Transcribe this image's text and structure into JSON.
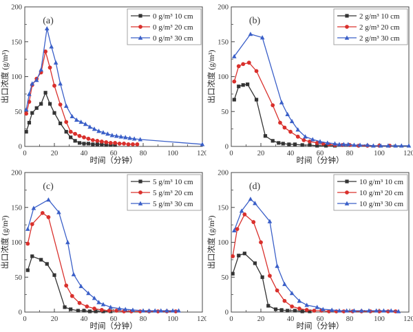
{
  "figure": {
    "background": "#ffffff",
    "axis_color": "#444444",
    "text_color": "#333333",
    "legend_border_color": "#999999"
  },
  "chart_data": [
    {
      "type": "line",
      "panel_label": "(a)",
      "xlabel": "时间（分钟）",
      "ylabel": "出口浓度 (g/m³)",
      "xlim": [
        0,
        120
      ],
      "ylim": [
        0,
        200
      ],
      "xticks": [
        0,
        20,
        40,
        60,
        80,
        100,
        120
      ],
      "yticks": [
        0,
        50,
        100,
        150,
        200
      ],
      "x_minor_step": 10,
      "y_minor_step": 25,
      "grid": false,
      "legend_position": "top-right",
      "series": [
        {
          "name": "0 g/m³ 10 cm",
          "color": "#333333",
          "marker": "square",
          "x": [
            1,
            3,
            5,
            8,
            11,
            14,
            17,
            20,
            24,
            28,
            31,
            34,
            37,
            40,
            43,
            46,
            49,
            52,
            55,
            58,
            61
          ],
          "y": [
            21,
            34,
            48,
            55,
            61,
            77,
            61,
            48,
            33,
            21,
            13,
            8,
            5,
            4,
            4,
            3,
            3,
            3,
            2,
            2,
            2
          ]
        },
        {
          "name": "0 g/m³ 20 cm",
          "color": "#d9302c",
          "marker": "circle",
          "x": [
            1,
            3,
            5,
            8,
            11,
            14,
            17,
            20,
            24,
            28,
            31,
            34,
            37,
            40,
            43,
            46,
            49,
            52,
            55,
            58,
            61,
            64,
            67,
            70,
            73,
            76
          ],
          "y": [
            47,
            64,
            88,
            97,
            106,
            136,
            113,
            87,
            60,
            35,
            21,
            18,
            15,
            13,
            11,
            9,
            8,
            7,
            6,
            5,
            5,
            4,
            4,
            3,
            3,
            3
          ]
        },
        {
          "name": "0 g/m³ 30 cm",
          "color": "#3a5fc8",
          "marker": "triangle",
          "x": [
            1,
            3,
            5,
            8,
            11,
            15,
            18,
            21,
            24,
            28,
            32,
            35,
            38,
            41,
            44,
            47,
            50,
            53,
            56,
            59,
            62,
            65,
            68,
            71,
            74,
            78,
            120
          ],
          "y": [
            53,
            75,
            90,
            95,
            110,
            169,
            143,
            120,
            90,
            58,
            43,
            38,
            35,
            32,
            28,
            25,
            22,
            20,
            18,
            16,
            15,
            14,
            13,
            12,
            11,
            10,
            3
          ]
        }
      ]
    },
    {
      "type": "line",
      "panel_label": "(b)",
      "xlabel": "时间（分钟）",
      "ylabel": "出口浓度 (g/m³)",
      "xlim": [
        0,
        120
      ],
      "ylim": [
        0,
        200
      ],
      "xticks": [
        0,
        20,
        40,
        60,
        80,
        100,
        120
      ],
      "yticks": [
        0,
        50,
        100,
        150,
        200
      ],
      "x_minor_step": 10,
      "y_minor_step": 25,
      "grid": false,
      "legend_position": "top-right",
      "series": [
        {
          "name": "2 g/m³ 10 cm",
          "color": "#333333",
          "marker": "square",
          "x": [
            2,
            5,
            8,
            11,
            17,
            23,
            28,
            32,
            35,
            39,
            43,
            48,
            53,
            58,
            64,
            70
          ],
          "y": [
            67,
            86,
            88,
            89,
            67,
            15,
            8,
            5,
            4,
            3,
            3,
            2,
            2,
            1,
            1,
            1
          ]
        },
        {
          "name": "2 g/m³ 20 cm",
          "color": "#d9302c",
          "marker": "circle",
          "x": [
            2,
            5,
            8,
            12,
            17,
            28,
            33,
            36,
            40,
            45,
            49,
            53,
            58,
            62,
            66,
            70,
            75,
            80,
            86,
            92,
            100,
            107
          ],
          "y": [
            93,
            115,
            118,
            120,
            108,
            59,
            34,
            27,
            21,
            14,
            9,
            7,
            5,
            4,
            3,
            2,
            2,
            2,
            1,
            1,
            1,
            1
          ]
        },
        {
          "name": "2 g/m³ 30 cm",
          "color": "#3a5fc8",
          "marker": "triangle",
          "x": [
            2,
            13,
            21,
            34,
            38,
            41,
            45,
            50,
            55,
            60,
            65,
            70,
            73,
            76,
            79,
            83,
            87,
            92,
            96,
            101,
            106,
            111,
            115,
            120
          ],
          "y": [
            129,
            161,
            156,
            63,
            46,
            36,
            24,
            14,
            10,
            7,
            5,
            4,
            3,
            3,
            3,
            2,
            2,
            2,
            1,
            1,
            1,
            1,
            1,
            1
          ]
        }
      ]
    },
    {
      "type": "line",
      "panel_label": "(c)",
      "xlabel": "时间（分钟）",
      "ylabel": "出口浓度 (g/m³)",
      "xlim": [
        0,
        120
      ],
      "ylim": [
        0,
        200
      ],
      "xticks": [
        0,
        20,
        40,
        60,
        80,
        100,
        120
      ],
      "yticks": [
        0,
        50,
        100,
        150,
        200
      ],
      "x_minor_step": 10,
      "y_minor_step": 25,
      "grid": false,
      "legend_position": "top-right",
      "series": [
        {
          "name": "5 g/m³ 10 cm",
          "color": "#333333",
          "marker": "square",
          "x": [
            2,
            5,
            11,
            15,
            20,
            27,
            31,
            36,
            40,
            44,
            48,
            53,
            58
          ],
          "y": [
            60,
            80,
            75,
            69,
            53,
            7,
            4,
            2,
            2,
            1,
            1,
            1,
            1
          ]
        },
        {
          "name": "5 g/m³ 20 cm",
          "color": "#d9302c",
          "marker": "circle",
          "x": [
            2,
            5,
            12,
            16,
            28,
            32,
            37,
            42,
            47,
            52,
            57,
            62,
            67,
            72,
            78,
            84,
            90,
            96,
            102
          ],
          "y": [
            98,
            126,
            142,
            136,
            38,
            23,
            13,
            8,
            5,
            3,
            2,
            2,
            1,
            1,
            1,
            1,
            1,
            1,
            1
          ]
        },
        {
          "name": "5 g/m³ 30 cm",
          "color": "#3a5fc8",
          "marker": "triangle",
          "x": [
            2,
            6,
            16,
            23,
            29,
            33,
            38,
            43,
            47,
            50,
            53,
            58,
            64,
            68,
            73,
            80,
            84,
            88,
            92,
            96,
            100,
            104
          ],
          "y": [
            119,
            149,
            161,
            143,
            100,
            54,
            37,
            27,
            20,
            14,
            11,
            7,
            5,
            4,
            3,
            2,
            2,
            2,
            2,
            2,
            2,
            2
          ]
        }
      ]
    },
    {
      "type": "line",
      "panel_label": "(d)",
      "xlabel": "时间（分钟）",
      "ylabel": "出口浓度 (g/m³)",
      "xlim": [
        0,
        120
      ],
      "ylim": [
        0,
        200
      ],
      "xticks": [
        0,
        20,
        40,
        60,
        80,
        100,
        120
      ],
      "yticks": [
        0,
        50,
        100,
        150,
        200
      ],
      "x_minor_step": 10,
      "y_minor_step": 25,
      "grid": false,
      "legend_position": "top-right",
      "series": [
        {
          "name": "10 g/m³ 10 cm",
          "color": "#333333",
          "marker": "square",
          "x": [
            1,
            5,
            9,
            16,
            21,
            25,
            30,
            34,
            38,
            43,
            48,
            53
          ],
          "y": [
            55,
            81,
            84,
            70,
            50,
            9,
            4,
            3,
            2,
            2,
            1,
            1
          ]
        },
        {
          "name": "10 g/m³ 20 cm",
          "color": "#d9302c",
          "marker": "circle",
          "x": [
            1,
            4,
            9,
            15,
            20,
            26,
            31,
            36,
            41,
            46,
            51,
            56,
            61,
            66,
            71,
            76,
            82,
            88,
            94,
            100,
            106,
            111
          ],
          "y": [
            80,
            119,
            140,
            129,
            100,
            52,
            31,
            16,
            8,
            5,
            3,
            2,
            2,
            1,
            1,
            1,
            1,
            1,
            1,
            1,
            1,
            1
          ]
        },
        {
          "name": "10 g/m³ 30 cm",
          "color": "#3a5fc8",
          "marker": "triangle",
          "x": [
            2,
            7,
            13,
            16,
            26,
            31,
            36,
            41,
            46,
            51,
            58,
            62,
            68,
            73,
            78,
            83,
            88,
            93,
            98,
            103,
            108,
            113
          ],
          "y": [
            117,
            145,
            162,
            156,
            130,
            66,
            40,
            27,
            16,
            10,
            7,
            4,
            3,
            2,
            2,
            2,
            2,
            2,
            2,
            2,
            2,
            1
          ]
        }
      ]
    }
  ]
}
